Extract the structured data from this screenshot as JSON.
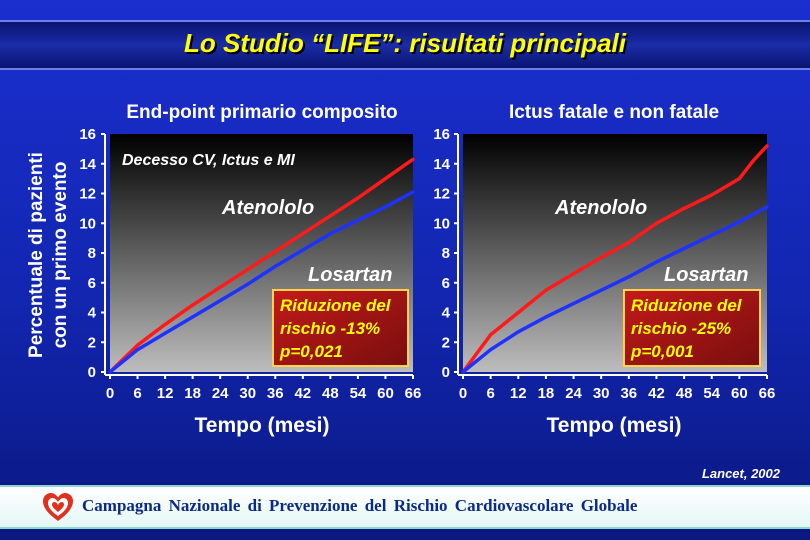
{
  "title": "Lo Studio “LIFE”: risultati principali",
  "y_axis_label_line1": "Percentuale di pazienti",
  "y_axis_label_line2": "con un primo evento",
  "citation": "Lancet, 2002",
  "footer": "Campagna Nazionale di Prevenzione del Rischio Cardiovascolare Globale",
  "colors": {
    "atenololo": "#ff1a1a",
    "losartan": "#1e32ff",
    "box_fill": "#b01818",
    "text_accent": "#ffff00"
  },
  "chart_data": [
    {
      "type": "line",
      "title": "End-point primario composito",
      "annotation": "Decesso CV, Ictus e MI",
      "xlabel": "Tempo (mesi)",
      "ylabel": "Percentuale di pazienti con un primo evento",
      "xlim": [
        0,
        66
      ],
      "ylim": [
        0,
        16
      ],
      "xticks": [
        0,
        6,
        12,
        18,
        24,
        30,
        36,
        42,
        48,
        54,
        60,
        66
      ],
      "yticks": [
        0,
        2,
        4,
        6,
        8,
        10,
        12,
        14,
        16
      ],
      "grid": false,
      "series": [
        {
          "name": "Atenololo",
          "x": [
            0,
            6,
            12,
            18,
            24,
            30,
            36,
            42,
            48,
            54,
            60,
            66
          ],
          "values": [
            0,
            1.8,
            3.2,
            4.5,
            5.7,
            6.9,
            8.1,
            9.3,
            10.5,
            11.7,
            13.0,
            14.3
          ]
        },
        {
          "name": "Losartan",
          "x": [
            0,
            6,
            12,
            18,
            24,
            30,
            36,
            42,
            48,
            54,
            60,
            66
          ],
          "values": [
            0,
            1.5,
            2.6,
            3.7,
            4.8,
            5.9,
            7.1,
            8.2,
            9.3,
            10.2,
            11.1,
            12.1
          ]
        }
      ],
      "box": {
        "line1": "Riduzione del",
        "line2": "rischio -13%",
        "line3": "p=0,021"
      }
    },
    {
      "type": "line",
      "title": "Ictus fatale e non fatale",
      "xlabel": "Tempo (mesi)",
      "xlim": [
        0,
        66
      ],
      "ylim": [
        0,
        16
      ],
      "xticks": [
        0,
        6,
        12,
        18,
        24,
        30,
        36,
        42,
        48,
        54,
        60,
        66
      ],
      "yticks": [
        0,
        2,
        4,
        6,
        8,
        10,
        12,
        14,
        16
      ],
      "grid": false,
      "series": [
        {
          "name": "Atenololo",
          "x": [
            0,
            6,
            12,
            18,
            24,
            30,
            36,
            42,
            48,
            54,
            60,
            63,
            66
          ],
          "values": [
            0,
            2.5,
            4.0,
            5.5,
            6.6,
            7.7,
            8.7,
            10.0,
            11.0,
            11.9,
            13.0,
            14.2,
            15.2
          ]
        },
        {
          "name": "Losartan",
          "x": [
            0,
            6,
            12,
            18,
            24,
            30,
            36,
            42,
            48,
            54,
            60,
            66
          ],
          "values": [
            0,
            1.5,
            2.7,
            3.7,
            4.6,
            5.5,
            6.4,
            7.4,
            8.3,
            9.2,
            10.1,
            11.1
          ]
        }
      ],
      "box": {
        "line1": "Riduzione del",
        "line2": "rischio -25%",
        "line3": "p=0,001"
      }
    }
  ]
}
